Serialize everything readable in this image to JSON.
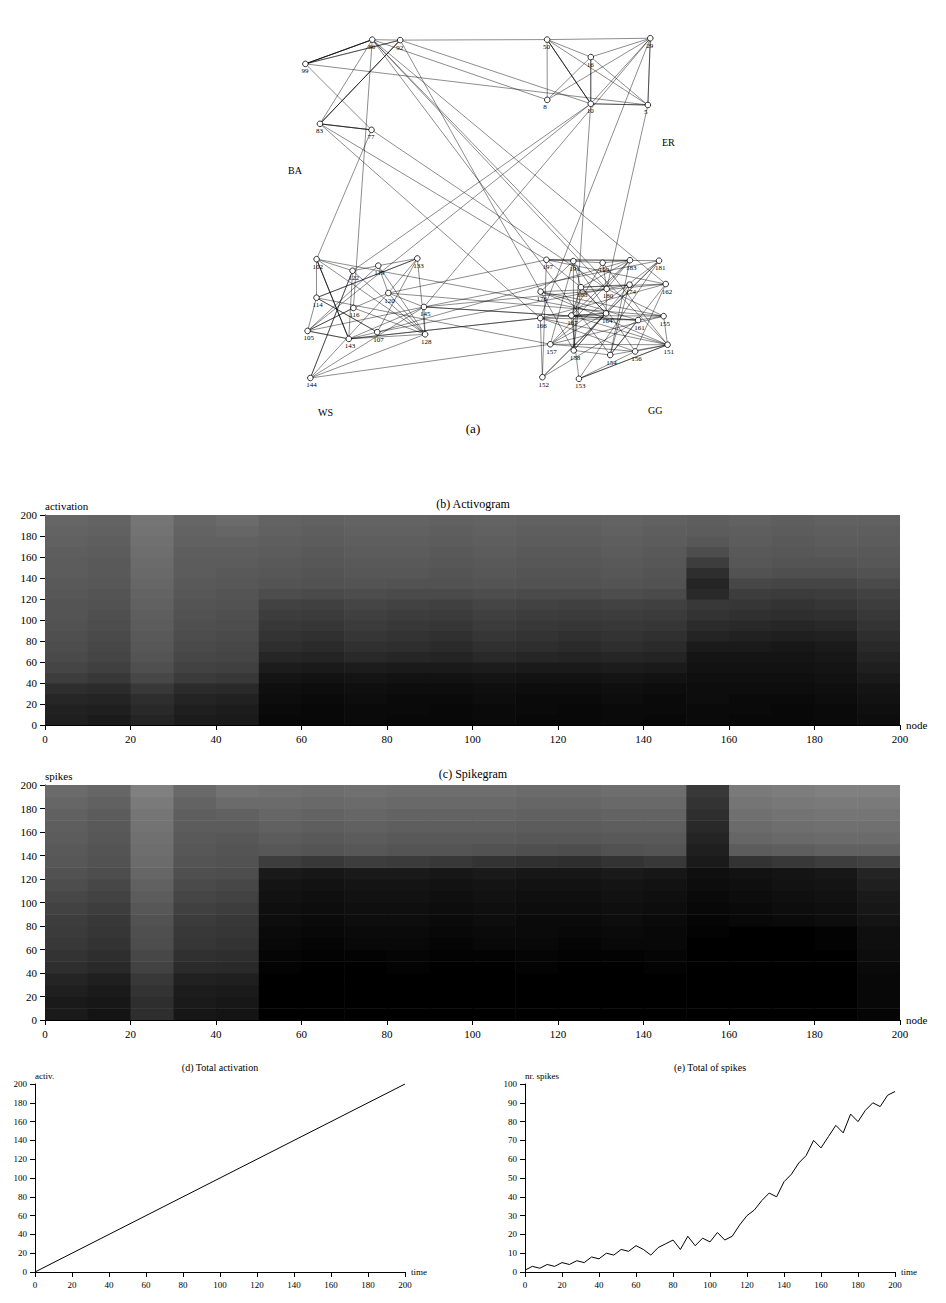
{
  "network": {
    "panel_label": "(a)",
    "clusters": [
      {
        "name": "BA",
        "nodes": [
          "99",
          "86",
          "92",
          "83",
          "77"
        ]
      },
      {
        "name": "ER",
        "nodes": [
          "50",
          "16",
          "29",
          "8",
          "10",
          "5"
        ]
      },
      {
        "name": "WS",
        "nodes": [
          "102",
          "122",
          "119",
          "133",
          "114",
          "116",
          "120",
          "145",
          "105",
          "143",
          "107",
          "128",
          "144"
        ]
      },
      {
        "name": "GG",
        "nodes": [
          "197",
          "191",
          "199",
          "183",
          "181",
          "176",
          "188",
          "180",
          "174",
          "162",
          "166",
          "167",
          "164",
          "161",
          "155",
          "157",
          "158",
          "154",
          "156",
          "151",
          "152",
          "153"
        ]
      }
    ]
  },
  "chart_data": [
    {
      "type": "heatmap",
      "title": "(b) Activogram",
      "ylabel": "activation",
      "xlabel": "node",
      "xlim": [
        0,
        200
      ],
      "xticks": [
        0,
        20,
        40,
        60,
        80,
        100,
        120,
        140,
        160,
        180,
        200
      ],
      "ylim": [
        0,
        200
      ],
      "yticks": [
        0,
        20,
        40,
        60,
        80,
        100,
        120,
        140,
        160,
        180,
        200
      ],
      "x_bins": [
        0,
        10,
        20,
        30,
        40,
        50,
        60,
        70,
        80,
        90,
        100,
        110,
        120,
        130,
        140,
        150,
        160,
        170,
        180,
        190,
        200
      ],
      "y_bins": [
        0,
        10,
        20,
        30,
        40,
        50,
        60,
        70,
        80,
        90,
        100,
        110,
        120,
        130,
        140,
        150,
        160,
        170,
        180,
        190,
        200
      ],
      "cells": [
        [
          0.12,
          0.1,
          0.14,
          0.11,
          0.1,
          0.03,
          0.03,
          0.04,
          0.03,
          0.03,
          0.04,
          0.03,
          0.03,
          0.04,
          0.03,
          0.04,
          0.03,
          0.03,
          0.04,
          0.05
        ],
        [
          0.13,
          0.12,
          0.16,
          0.12,
          0.11,
          0.04,
          0.03,
          0.04,
          0.04,
          0.03,
          0.04,
          0.04,
          0.03,
          0.04,
          0.04,
          0.04,
          0.04,
          0.03,
          0.04,
          0.06
        ],
        [
          0.15,
          0.14,
          0.18,
          0.14,
          0.13,
          0.05,
          0.04,
          0.05,
          0.04,
          0.04,
          0.05,
          0.04,
          0.04,
          0.05,
          0.04,
          0.05,
          0.04,
          0.04,
          0.05,
          0.07
        ],
        [
          0.18,
          0.17,
          0.22,
          0.17,
          0.16,
          0.06,
          0.05,
          0.06,
          0.05,
          0.05,
          0.06,
          0.05,
          0.05,
          0.06,
          0.05,
          0.05,
          0.05,
          0.05,
          0.06,
          0.08
        ],
        [
          0.24,
          0.22,
          0.28,
          0.23,
          0.22,
          0.08,
          0.07,
          0.08,
          0.07,
          0.07,
          0.08,
          0.07,
          0.07,
          0.08,
          0.07,
          0.06,
          0.06,
          0.06,
          0.07,
          0.1
        ],
        [
          0.27,
          0.25,
          0.31,
          0.26,
          0.25,
          0.11,
          0.1,
          0.11,
          0.1,
          0.1,
          0.11,
          0.1,
          0.1,
          0.11,
          0.1,
          0.07,
          0.07,
          0.07,
          0.08,
          0.12
        ],
        [
          0.29,
          0.27,
          0.33,
          0.28,
          0.27,
          0.15,
          0.14,
          0.16,
          0.15,
          0.14,
          0.16,
          0.15,
          0.14,
          0.15,
          0.14,
          0.08,
          0.08,
          0.08,
          0.09,
          0.14
        ],
        [
          0.3,
          0.28,
          0.34,
          0.29,
          0.28,
          0.18,
          0.17,
          0.19,
          0.18,
          0.17,
          0.19,
          0.18,
          0.17,
          0.18,
          0.17,
          0.1,
          0.1,
          0.09,
          0.1,
          0.16
        ],
        [
          0.31,
          0.29,
          0.35,
          0.3,
          0.29,
          0.2,
          0.19,
          0.21,
          0.2,
          0.19,
          0.21,
          0.2,
          0.19,
          0.2,
          0.19,
          0.14,
          0.13,
          0.12,
          0.13,
          0.18
        ],
        [
          0.32,
          0.3,
          0.36,
          0.31,
          0.3,
          0.22,
          0.21,
          0.23,
          0.22,
          0.21,
          0.23,
          0.22,
          0.21,
          0.22,
          0.21,
          0.17,
          0.16,
          0.15,
          0.16,
          0.2
        ],
        [
          0.33,
          0.31,
          0.37,
          0.32,
          0.31,
          0.24,
          0.23,
          0.25,
          0.24,
          0.23,
          0.25,
          0.24,
          0.23,
          0.24,
          0.23,
          0.2,
          0.19,
          0.18,
          0.19,
          0.22
        ],
        [
          0.33,
          0.32,
          0.38,
          0.33,
          0.32,
          0.26,
          0.25,
          0.27,
          0.26,
          0.25,
          0.27,
          0.26,
          0.25,
          0.26,
          0.25,
          0.22,
          0.21,
          0.2,
          0.21,
          0.24
        ],
        [
          0.34,
          0.33,
          0.39,
          0.34,
          0.33,
          0.3,
          0.29,
          0.3,
          0.29,
          0.29,
          0.3,
          0.29,
          0.29,
          0.3,
          0.29,
          0.16,
          0.24,
          0.23,
          0.24,
          0.26
        ],
        [
          0.35,
          0.34,
          0.4,
          0.35,
          0.34,
          0.33,
          0.32,
          0.33,
          0.32,
          0.32,
          0.33,
          0.32,
          0.32,
          0.33,
          0.32,
          0.14,
          0.28,
          0.27,
          0.27,
          0.29
        ],
        [
          0.36,
          0.35,
          0.41,
          0.36,
          0.35,
          0.34,
          0.33,
          0.34,
          0.34,
          0.33,
          0.34,
          0.33,
          0.33,
          0.34,
          0.33,
          0.18,
          0.32,
          0.31,
          0.31,
          0.32
        ],
        [
          0.36,
          0.35,
          0.42,
          0.36,
          0.36,
          0.35,
          0.34,
          0.35,
          0.35,
          0.34,
          0.35,
          0.34,
          0.34,
          0.35,
          0.34,
          0.24,
          0.34,
          0.33,
          0.33,
          0.34
        ],
        [
          0.37,
          0.36,
          0.43,
          0.37,
          0.37,
          0.36,
          0.35,
          0.36,
          0.36,
          0.35,
          0.36,
          0.35,
          0.35,
          0.36,
          0.35,
          0.3,
          0.35,
          0.34,
          0.35,
          0.35
        ],
        [
          0.38,
          0.37,
          0.44,
          0.38,
          0.38,
          0.37,
          0.36,
          0.37,
          0.37,
          0.36,
          0.37,
          0.36,
          0.36,
          0.37,
          0.36,
          0.34,
          0.36,
          0.35,
          0.36,
          0.36
        ],
        [
          0.39,
          0.38,
          0.45,
          0.39,
          0.4,
          0.38,
          0.37,
          0.38,
          0.38,
          0.37,
          0.38,
          0.37,
          0.37,
          0.38,
          0.37,
          0.36,
          0.37,
          0.36,
          0.37,
          0.37
        ],
        [
          0.4,
          0.39,
          0.46,
          0.4,
          0.42,
          0.39,
          0.38,
          0.39,
          0.39,
          0.38,
          0.39,
          0.38,
          0.38,
          0.39,
          0.38,
          0.37,
          0.38,
          0.37,
          0.38,
          0.38
        ]
      ]
    },
    {
      "type": "heatmap",
      "title": "(c) Spikegram",
      "ylabel": "spikes",
      "xlabel": "node",
      "xlim": [
        0,
        200
      ],
      "xticks": [
        0,
        20,
        40,
        60,
        80,
        100,
        120,
        140,
        160,
        180,
        200
      ],
      "ylim": [
        0,
        200
      ],
      "yticks": [
        0,
        20,
        40,
        60,
        80,
        100,
        120,
        140,
        160,
        180,
        200
      ],
      "x_bins": [
        0,
        10,
        20,
        30,
        40,
        50,
        60,
        70,
        80,
        90,
        100,
        110,
        120,
        130,
        140,
        150,
        160,
        170,
        180,
        190,
        200
      ],
      "y_bins": [
        0,
        10,
        20,
        30,
        40,
        50,
        60,
        70,
        80,
        90,
        100,
        110,
        120,
        130,
        140,
        150,
        160,
        170,
        180,
        190,
        200
      ],
      "cells": [
        [
          0.1,
          0.08,
          0.18,
          0.09,
          0.08,
          0,
          0,
          0,
          0,
          0,
          0,
          0,
          0,
          0,
          0,
          0,
          0,
          0,
          0,
          0.02
        ],
        [
          0.1,
          0.09,
          0.18,
          0.1,
          0.09,
          0,
          0,
          0,
          0,
          0,
          0,
          0,
          0,
          0,
          0,
          0,
          0,
          0,
          0,
          0.03
        ],
        [
          0.12,
          0.1,
          0.2,
          0.11,
          0.1,
          0,
          0,
          0,
          0,
          0,
          0,
          0,
          0,
          0,
          0,
          0,
          0,
          0,
          0,
          0.03
        ],
        [
          0.14,
          0.12,
          0.22,
          0.13,
          0.12,
          0,
          0,
          0,
          0,
          0,
          0,
          0,
          0,
          0,
          0,
          0,
          0,
          0,
          0,
          0.03
        ],
        [
          0.18,
          0.16,
          0.26,
          0.17,
          0.16,
          0.01,
          0,
          0,
          0.01,
          0,
          0,
          0.01,
          0,
          0,
          0.01,
          0,
          0,
          0,
          0,
          0.04
        ],
        [
          0.2,
          0.18,
          0.28,
          0.19,
          0.18,
          0.02,
          0.01,
          0.01,
          0.02,
          0.01,
          0.01,
          0.02,
          0.01,
          0.01,
          0.02,
          0,
          0,
          0,
          0,
          0.05
        ],
        [
          0.22,
          0.2,
          0.3,
          0.21,
          0.2,
          0.03,
          0.02,
          0.03,
          0.03,
          0.02,
          0.03,
          0.03,
          0.02,
          0.03,
          0.03,
          0,
          0,
          0,
          0.01,
          0.06
        ],
        [
          0.23,
          0.21,
          0.31,
          0.22,
          0.21,
          0.04,
          0.03,
          0.04,
          0.04,
          0.03,
          0.04,
          0.04,
          0.03,
          0.04,
          0.03,
          0.01,
          0,
          0,
          0.01,
          0.06
        ],
        [
          0.24,
          0.22,
          0.32,
          0.23,
          0.22,
          0.05,
          0.04,
          0.05,
          0.05,
          0.04,
          0.05,
          0.04,
          0.04,
          0.05,
          0.04,
          0.02,
          0.03,
          0.04,
          0.05,
          0.08
        ],
        [
          0.26,
          0.24,
          0.34,
          0.25,
          0.24,
          0.06,
          0.05,
          0.06,
          0.06,
          0.05,
          0.06,
          0.05,
          0.05,
          0.06,
          0.05,
          0.03,
          0.04,
          0.05,
          0.06,
          0.09
        ],
        [
          0.28,
          0.26,
          0.36,
          0.27,
          0.26,
          0.07,
          0.06,
          0.07,
          0.07,
          0.06,
          0.07,
          0.06,
          0.06,
          0.07,
          0.06,
          0.04,
          0.05,
          0.06,
          0.07,
          0.1
        ],
        [
          0.3,
          0.28,
          0.38,
          0.29,
          0.28,
          0.08,
          0.07,
          0.08,
          0.08,
          0.07,
          0.08,
          0.07,
          0.07,
          0.08,
          0.07,
          0.05,
          0.06,
          0.07,
          0.08,
          0.12
        ],
        [
          0.32,
          0.3,
          0.4,
          0.31,
          0.3,
          0.1,
          0.09,
          0.1,
          0.1,
          0.09,
          0.1,
          0.09,
          0.09,
          0.1,
          0.09,
          0.06,
          0.07,
          0.08,
          0.09,
          0.14
        ],
        [
          0.34,
          0.32,
          0.42,
          0.33,
          0.32,
          0.24,
          0.22,
          0.24,
          0.23,
          0.22,
          0.2,
          0.19,
          0.18,
          0.2,
          0.22,
          0.1,
          0.2,
          0.22,
          0.24,
          0.26
        ],
        [
          0.35,
          0.33,
          0.43,
          0.34,
          0.33,
          0.34,
          0.33,
          0.34,
          0.33,
          0.33,
          0.32,
          0.31,
          0.3,
          0.32,
          0.33,
          0.12,
          0.36,
          0.37,
          0.38,
          0.38
        ],
        [
          0.36,
          0.34,
          0.44,
          0.35,
          0.34,
          0.36,
          0.35,
          0.36,
          0.35,
          0.35,
          0.35,
          0.34,
          0.34,
          0.35,
          0.35,
          0.14,
          0.4,
          0.41,
          0.42,
          0.42
        ],
        [
          0.37,
          0.35,
          0.45,
          0.36,
          0.36,
          0.38,
          0.37,
          0.38,
          0.37,
          0.37,
          0.37,
          0.36,
          0.36,
          0.37,
          0.37,
          0.16,
          0.42,
          0.43,
          0.44,
          0.44
        ],
        [
          0.38,
          0.36,
          0.46,
          0.37,
          0.38,
          0.4,
          0.39,
          0.4,
          0.39,
          0.39,
          0.39,
          0.38,
          0.38,
          0.39,
          0.39,
          0.18,
          0.44,
          0.45,
          0.46,
          0.46
        ],
        [
          0.4,
          0.38,
          0.48,
          0.39,
          0.42,
          0.42,
          0.41,
          0.42,
          0.41,
          0.41,
          0.41,
          0.4,
          0.4,
          0.41,
          0.41,
          0.2,
          0.46,
          0.47,
          0.48,
          0.48
        ],
        [
          0.42,
          0.4,
          0.5,
          0.41,
          0.45,
          0.44,
          0.43,
          0.44,
          0.43,
          0.43,
          0.43,
          0.42,
          0.42,
          0.43,
          0.43,
          0.22,
          0.48,
          0.49,
          0.5,
          0.5
        ]
      ]
    },
    {
      "type": "line",
      "title": "(d) Total activation",
      "ylabel": "activ.",
      "xlabel": "time",
      "color": "#000000",
      "x": [
        0,
        200
      ],
      "values": [
        0,
        200
      ],
      "xlim": [
        0,
        200
      ],
      "xticks": [
        0,
        20,
        40,
        60,
        80,
        100,
        120,
        140,
        160,
        180,
        200
      ],
      "ylim": [
        0,
        200
      ],
      "yticks": [
        0,
        20,
        40,
        60,
        80,
        100,
        120,
        140,
        160,
        180,
        200
      ]
    },
    {
      "type": "line",
      "title": "(e) Total of spikes",
      "ylabel": "nr. spikes",
      "xlabel": "time",
      "color": "#000000",
      "x": [
        0,
        4,
        8,
        12,
        16,
        20,
        24,
        28,
        32,
        36,
        40,
        44,
        48,
        52,
        56,
        60,
        64,
        68,
        72,
        76,
        80,
        84,
        88,
        92,
        96,
        100,
        104,
        108,
        112,
        116,
        120,
        124,
        128,
        132,
        136,
        140,
        144,
        148,
        152,
        156,
        160,
        164,
        168,
        172,
        176,
        180,
        184,
        188,
        192,
        196,
        200
      ],
      "values": [
        1,
        3,
        2,
        4,
        3,
        5,
        4,
        6,
        5,
        8,
        7,
        10,
        9,
        12,
        11,
        14,
        12,
        9,
        13,
        15,
        17,
        12,
        19,
        14,
        18,
        16,
        21,
        17,
        19,
        25,
        30,
        33,
        38,
        42,
        40,
        48,
        52,
        58,
        62,
        70,
        66,
        72,
        78,
        74,
        84,
        80,
        86,
        90,
        88,
        94,
        96
      ],
      "xlim": [
        0,
        200
      ],
      "xticks": [
        0,
        20,
        40,
        60,
        80,
        100,
        120,
        140,
        160,
        180,
        200
      ],
      "ylim": [
        0,
        100
      ],
      "yticks": [
        0,
        10,
        20,
        30,
        40,
        50,
        60,
        70,
        80,
        90,
        100
      ]
    }
  ]
}
